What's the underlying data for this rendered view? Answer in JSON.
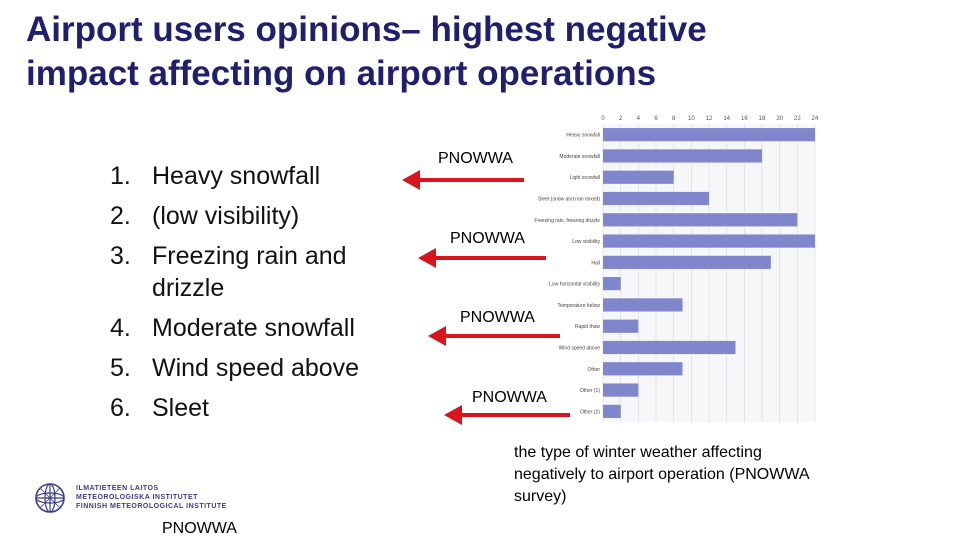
{
  "slide": {
    "title_line1": "Airport users opinions– highest negative",
    "title_line2": "impact affecting on airport operations",
    "list": [
      {
        "num": "1.",
        "text": "Heavy snowfall"
      },
      {
        "num": "2.",
        "text": "(low visibility)"
      },
      {
        "num": "3.",
        "text": "Freezing rain and drizzle"
      },
      {
        "num": "4.",
        "text": "Moderate snowfall"
      },
      {
        "num": "5.",
        "text": "Wind speed above"
      },
      {
        "num": "6.",
        "text": "Sleet"
      }
    ],
    "arrow_labels": [
      "PNOWWA",
      "PNOWWA",
      "PNOWWA",
      "PNOWWA"
    ],
    "arrow_color": "#d9141b",
    "caption": "the type of winter weather affecting negatively to airport operation (PNOWWA survey)",
    "footer_label": "PNOWWA",
    "logo": {
      "line1": "ILMATIETEEN LAITOS",
      "line2": "METEOROLOGISKA INSTITUTET",
      "line3": "FINNISH METEOROLOGICAL INSTITUTE",
      "color": "#3c3c88"
    }
  },
  "chart_data": {
    "type": "bar",
    "orientation": "horizontal",
    "categories": [
      "Heavy snowfall",
      "Moderate snowfall",
      "Light snowfall",
      "Sleet (snow and rain mixed)",
      "Freezing rain, freezing drizzle",
      "Low visibility",
      "Hail",
      "Low horizontal visibility",
      "Temperature below",
      "Rapid thaw",
      "Wind speed above",
      "Other",
      "Other (1)",
      "Other (2)"
    ],
    "values": [
      24,
      18,
      8,
      12,
      22,
      24,
      19,
      2,
      9,
      4,
      15,
      9,
      4,
      2
    ],
    "xticks": [
      "0",
      "2",
      "4",
      "6",
      "8",
      "10",
      "12",
      "14",
      "16",
      "18",
      "20",
      "22",
      "24"
    ],
    "xlim": [
      0,
      24
    ],
    "bar_color": "#7f86cc",
    "grid": true
  }
}
